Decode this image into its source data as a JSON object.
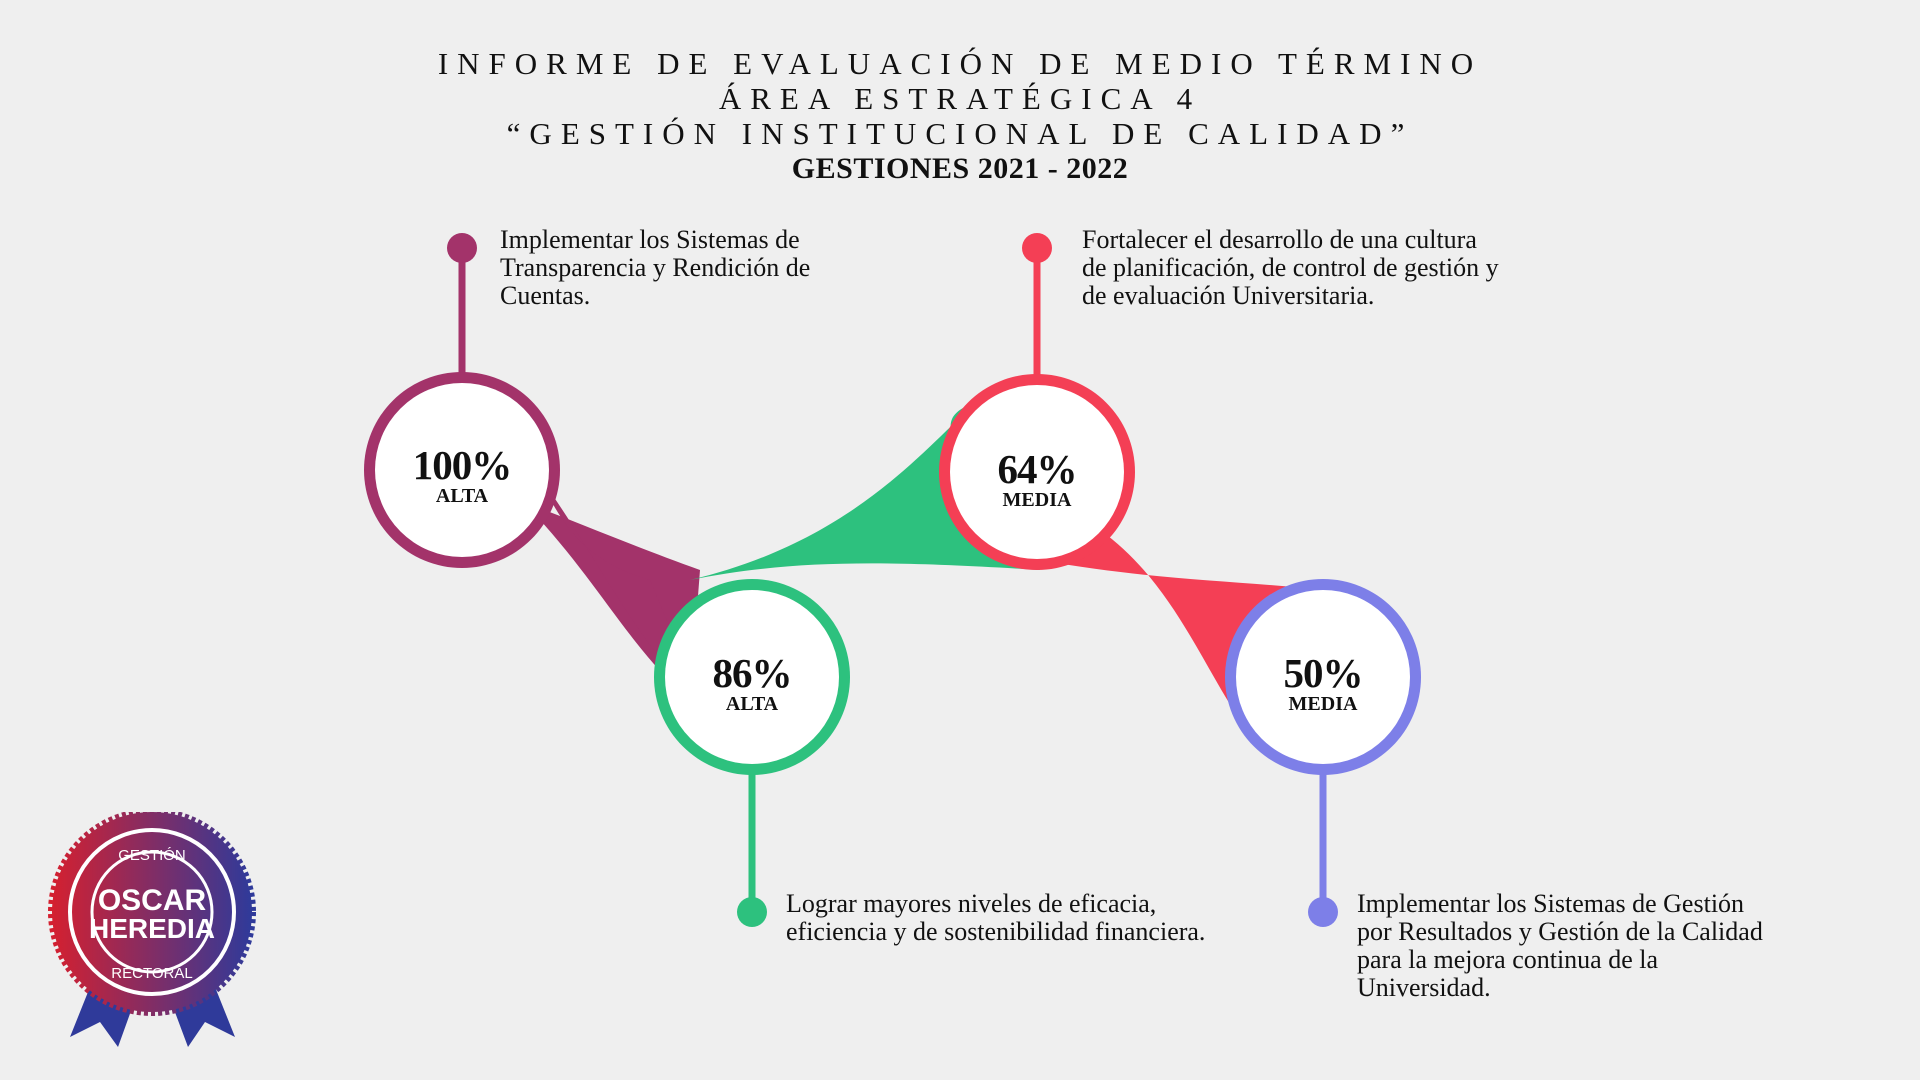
{
  "header": {
    "line1": "INFORME DE EVALUACIÓN DE MEDIO TÉRMINO",
    "line2": "ÁREA ESTRATÉGICA 4",
    "line3": "“GESTIÓN INSTITUCIONAL DE CALIDAD”",
    "line4": "GESTIONES 2021 - 2022"
  },
  "nodes": [
    {
      "percent": "100%",
      "level": "ALTA",
      "color": "#a3336a",
      "text": "Implementar los Sistemas de Transparencia y Rendición de Cuentas."
    },
    {
      "percent": "86%",
      "level": "ALTA",
      "color": "#2dc17e",
      "text": "Lograr mayores niveles de eficacia, eficiencia y de sostenibilidad financiera."
    },
    {
      "percent": "64%",
      "level": "MEDIA",
      "color": "#f43f55",
      "text": "Fortalecer el desarrollo de una cultura de planificación, de control de gestión y de evaluación Universitaria."
    },
    {
      "percent": "50%",
      "level": "MEDIA",
      "color": "#7d7fe8",
      "text": "Implementar los Sistemas de Gestión por Resultados y Gestión de la Calidad para la mejora continua de la Universidad."
    }
  ],
  "badge": {
    "top": "GESTIÓN",
    "name1": "OSCAR",
    "name2": "HEREDIA",
    "bottom": "RECTORAL",
    "red": "#d42030",
    "blue": "#2f3a9a"
  }
}
